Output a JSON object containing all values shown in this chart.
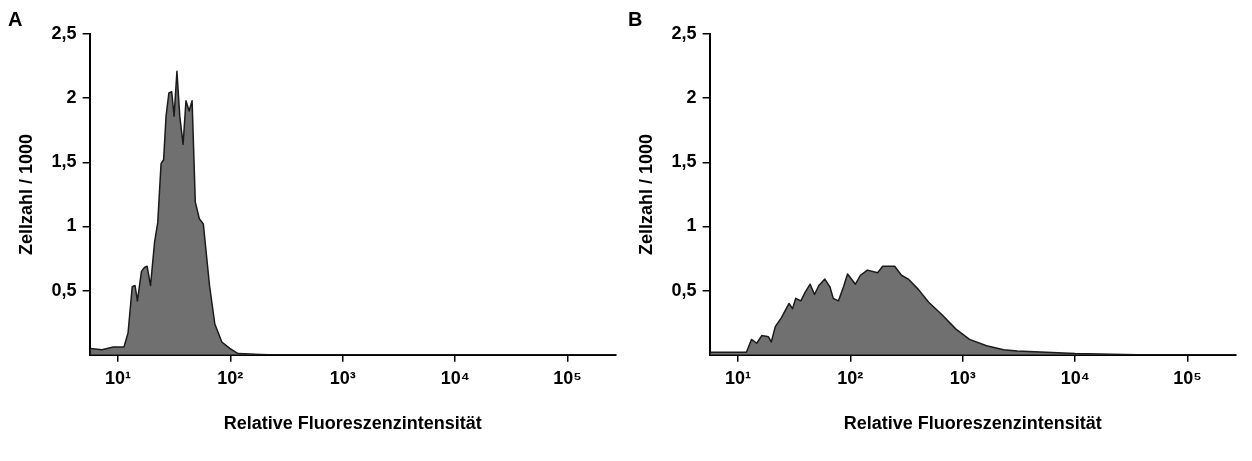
{
  "chart_data": [
    {
      "type": "area",
      "title": "A",
      "xlabel": "Relative Fluoreszenzintensität",
      "ylabel": "Zellzahl / 1000",
      "log": "x",
      "xlim": [
        5.6,
        270000
      ],
      "xticks": [
        {
          "value": 10,
          "label": "10¹"
        },
        {
          "value": 100,
          "label": "10²"
        },
        {
          "value": 1000,
          "label": "10³"
        },
        {
          "value": 10000,
          "label": "10⁴"
        },
        {
          "value": 100000,
          "label": "10⁵"
        }
      ],
      "ylim": [
        0,
        2.5
      ],
      "yticks": [
        {
          "value": 0.5,
          "label": "0,5"
        },
        {
          "value": 1,
          "label": "1"
        },
        {
          "value": 1.5,
          "label": "1,5"
        },
        {
          "value": 2,
          "label": "2"
        },
        {
          "value": 2.5,
          "label": "2,5"
        }
      ],
      "x": [
        5.7,
        7.2,
        9.1,
        11.3,
        12.3,
        13.4,
        14.2,
        14.9,
        16.2,
        17.2,
        18.2,
        19.5,
        21.2,
        22.6,
        24.2,
        25.5,
        26.8,
        28.4,
        30.1,
        31.6,
        33.5,
        35.5,
        38,
        40.3,
        43,
        45.7,
        48.8,
        53,
        57.5,
        65.3,
        72.8,
        84,
        99,
        117,
        220,
        270000
      ],
      "series": [
        {
          "color": "#707070",
          "values": [
            0.05,
            0.04,
            0.06,
            0.06,
            0.17,
            0.53,
            0.54,
            0.42,
            0.65,
            0.68,
            0.69,
            0.54,
            0.88,
            1.03,
            1.49,
            1.52,
            1.86,
            2.04,
            2.05,
            1.86,
            2.21,
            1.86,
            1.64,
            1.98,
            1.9,
            1.98,
            1.19,
            1.06,
            1.02,
            0.54,
            0.24,
            0.1,
            0.05,
            0.01,
            0,
            0
          ]
        }
      ]
    },
    {
      "type": "area",
      "title": "B",
      "xlabel": "Relative Fluoreszenzintensität",
      "ylabel": "Zellzahl / 1000",
      "log": "x",
      "xlim": [
        5.6,
        270000
      ],
      "xticks": [
        {
          "value": 10,
          "label": "10¹"
        },
        {
          "value": 100,
          "label": "10²"
        },
        {
          "value": 1000,
          "label": "10³"
        },
        {
          "value": 10000,
          "label": "10⁴"
        },
        {
          "value": 100000,
          "label": "10⁵"
        }
      ],
      "ylim": [
        0,
        2.5
      ],
      "yticks": [
        {
          "value": 0.5,
          "label": "0,5"
        },
        {
          "value": 1,
          "label": "1"
        },
        {
          "value": 1.5,
          "label": "1,5"
        },
        {
          "value": 2,
          "label": "2"
        },
        {
          "value": 2.5,
          "label": "2,5"
        }
      ],
      "x": [
        5.7,
        8.6,
        11.9,
        13.2,
        14.7,
        16.3,
        18.7,
        19.8,
        21.5,
        24.4,
        28.5,
        30.6,
        32.7,
        36.3,
        39.8,
        43.9,
        48,
        52.5,
        59.3,
        65.8,
        70.5,
        78.3,
        87,
        94.5,
        111,
        123,
        142,
        175,
        194,
        248,
        285,
        328,
        403,
        498,
        658,
        870,
        1150,
        1630,
        2310,
        3050,
        10000,
        35000,
        270000
      ],
      "series": [
        {
          "color": "#707070",
          "values": [
            0.02,
            0.02,
            0.02,
            0.12,
            0.09,
            0.15,
            0.14,
            0.1,
            0.22,
            0.29,
            0.4,
            0.36,
            0.44,
            0.42,
            0.49,
            0.55,
            0.47,
            0.54,
            0.59,
            0.53,
            0.44,
            0.42,
            0.53,
            0.63,
            0.55,
            0.62,
            0.66,
            0.64,
            0.69,
            0.69,
            0.62,
            0.59,
            0.51,
            0.41,
            0.31,
            0.2,
            0.12,
            0.07,
            0.04,
            0.03,
            0.01,
            0,
            0
          ]
        }
      ]
    }
  ]
}
